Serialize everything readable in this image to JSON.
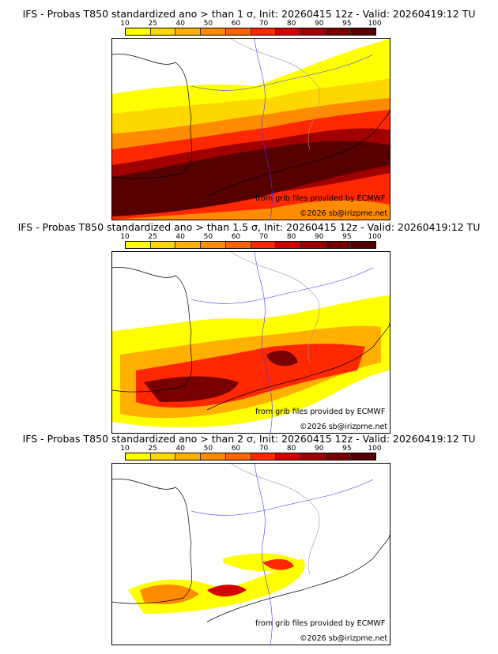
{
  "panels": [
    {
      "title": "IFS - Probas T850  standardized ano > than 1 σ, Init: 20260415 12z - Valid: 20260419:12 TU",
      "sigma": 1
    },
    {
      "title": "IFS - Probas T850  standardized ano > than 1.5 σ, Init: 20260415 12z - Valid: 20260419:12 TU",
      "sigma": 1.5
    },
    {
      "title": "IFS - Probas T850  standardized ano > than 2 σ, Init: 20260415 12z - Valid: 20260419:12 TU",
      "sigma": 2
    }
  ],
  "colorbar": {
    "ticks": [
      "10",
      "25",
      "40",
      "50",
      "60",
      "70",
      "80",
      "90",
      "95",
      "100"
    ],
    "colors": [
      "#ffff00",
      "#ffd700",
      "#ffb000",
      "#ff8c00",
      "#ff6400",
      "#ff2800",
      "#d40000",
      "#a00000",
      "#780000",
      "#560000"
    ]
  },
  "credits": {
    "source": "from grib files provided by ECMWF",
    "copyright": "©2026 sb@irizpme.net"
  }
}
